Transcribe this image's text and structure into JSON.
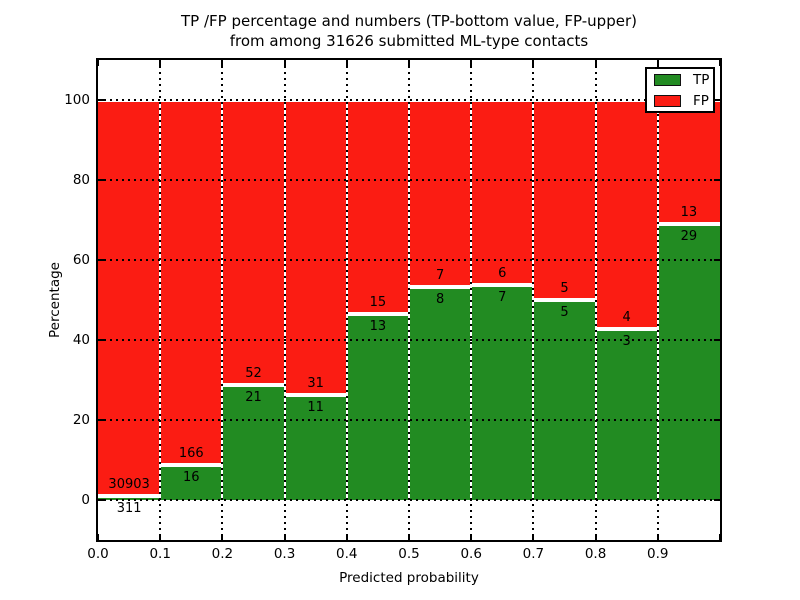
{
  "title": {
    "line1": "TP /FP percentage and numbers (TP-bottom value, FP-upper)",
    "line2": "from among 31626 submitted ML-type contacts"
  },
  "colors": {
    "tp_green": "#228b22",
    "fp_red": "#fb1c13",
    "bar_edge": "#ffffff",
    "grid": "#000000",
    "background": "#ffffff",
    "text": "#000000"
  },
  "legend": {
    "position": "upper-right",
    "entries": [
      {
        "label": "TP",
        "color": "#228b22"
      },
      {
        "label": "FP",
        "color": "#fb1c13"
      }
    ]
  },
  "chart_data": {
    "type": "bar",
    "stacked": true,
    "normalization": "each 0.1-wide bin scaled to 100%; green = TP share (bottom), red = FP share (top); numeric labels are raw counts (TP label below boundary, FP label above)",
    "title": "TP /FP percentage and numbers (TP-bottom value, FP-upper) from among 31626 submitted ML-type contacts",
    "xlabel": "Predicted probability",
    "ylabel": "Percentage",
    "xlim": [
      0.0,
      1.0
    ],
    "ylim": [
      -10,
      110
    ],
    "bin_width": 0.1,
    "x_tick_labels": [
      "0.0",
      "0.1",
      "0.2",
      "0.3",
      "0.4",
      "0.5",
      "0.6",
      "0.7",
      "0.8",
      "0.9"
    ],
    "y_ticks": [
      0,
      20,
      40,
      60,
      80,
      100
    ],
    "y_tick_labels": [
      "0",
      "20",
      "40",
      "60",
      "80",
      "100"
    ],
    "grid": {
      "style": "dotted",
      "color": "#000000",
      "vertical_at": [
        0.1,
        0.2,
        0.3,
        0.4,
        0.5,
        0.6,
        0.7,
        0.8,
        0.9
      ]
    },
    "categories": [
      "0.0-0.1",
      "0.1-0.2",
      "0.2-0.3",
      "0.3-0.4",
      "0.4-0.5",
      "0.5-0.6",
      "0.6-0.7",
      "0.7-0.8",
      "0.8-0.9",
      "0.9-1.0"
    ],
    "series": [
      {
        "name": "TP",
        "color": "#228b22",
        "counts": [
          311,
          16,
          21,
          11,
          13,
          8,
          7,
          5,
          3,
          29
        ]
      },
      {
        "name": "FP",
        "color": "#fb1c13",
        "counts": [
          30903,
          166,
          52,
          31,
          15,
          7,
          6,
          5,
          4,
          13
        ]
      }
    ],
    "tp_percent_per_bin": [
      1.0,
      8.79,
      28.77,
      26.19,
      46.43,
      53.33,
      53.85,
      50.0,
      42.86,
      69.05
    ],
    "total_contacts": 31626
  }
}
